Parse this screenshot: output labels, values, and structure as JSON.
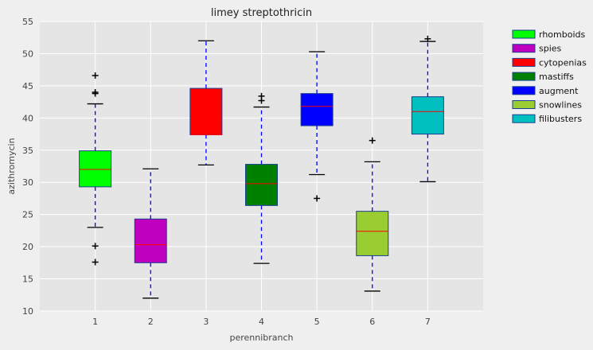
{
  "chart_data": {
    "type": "box",
    "title": "limey streptothricin",
    "xlabel": "perennibranch",
    "ylabel": "azithromycin",
    "ylim": [
      10,
      55
    ],
    "yticks": [
      10,
      15,
      20,
      25,
      30,
      35,
      40,
      45,
      50,
      55
    ],
    "categories": [
      "1",
      "2",
      "3",
      "4",
      "5",
      "6",
      "7"
    ],
    "grid": true,
    "legend_position": "top-right, outside plot",
    "median_color": "#ff0000",
    "whisker_color": "#0000ff",
    "series": [
      {
        "name": "rhomboids",
        "color": "#00ff00",
        "whisker_low": 23.0,
        "q1": 29.3,
        "median": 32.0,
        "q3": 34.9,
        "whisker_high": 42.2,
        "fliers": [
          46.6,
          44.0,
          43.8,
          20.1,
          17.6
        ]
      },
      {
        "name": "spies",
        "color": "#bf00bf",
        "whisker_low": 12.0,
        "q1": 17.5,
        "median": 20.3,
        "q3": 24.3,
        "whisker_high": 32.1,
        "fliers": []
      },
      {
        "name": "cytopenias",
        "color": "#ff0000",
        "whisker_low": 32.7,
        "q1": 37.4,
        "median": 37.4,
        "q3": 44.6,
        "whisker_high": 52.0,
        "fliers": []
      },
      {
        "name": "mastiffs",
        "color": "#008000",
        "whisker_low": 17.4,
        "q1": 26.4,
        "median": 29.8,
        "q3": 32.8,
        "whisker_high": 41.7,
        "fliers": [
          43.4,
          42.7
        ]
      },
      {
        "name": "augment",
        "color": "#0000ff",
        "whisker_low": 31.2,
        "q1": 38.8,
        "median": 41.8,
        "q3": 43.8,
        "whisker_high": 50.3,
        "fliers": [
          27.5
        ]
      },
      {
        "name": "snowlines",
        "color": "#9acd32",
        "whisker_low": 13.1,
        "q1": 18.6,
        "median": 22.4,
        "q3": 25.5,
        "whisker_high": 33.2,
        "fliers": [
          36.5
        ]
      },
      {
        "name": "filibusters",
        "color": "#00bfbf",
        "whisker_low": 30.1,
        "q1": 37.5,
        "median": 41.0,
        "q3": 43.3,
        "whisker_high": 51.9,
        "fliers": [
          52.3
        ]
      }
    ]
  }
}
